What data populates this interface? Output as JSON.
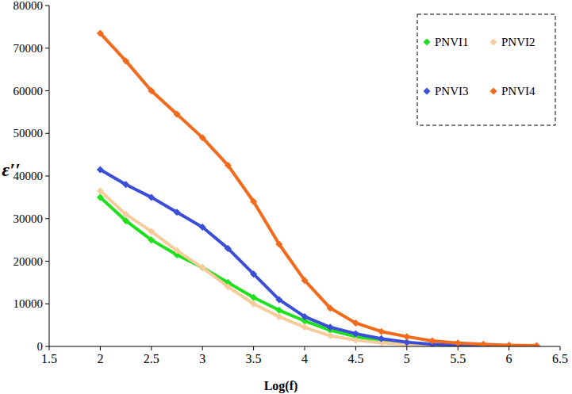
{
  "chart_data": {
    "type": "line",
    "x_label": "Log(f)",
    "y_label": "ε′′",
    "x": [
      2,
      2.25,
      2.5,
      2.75,
      3,
      3.25,
      3.5,
      3.75,
      4,
      4.25,
      4.5,
      4.75,
      5,
      5.25,
      5.5,
      5.75,
      6,
      6.27
    ],
    "series": [
      {
        "name": "PNVI1",
        "color": "#1ee01e",
        "marker": "diamond",
        "values": [
          35000,
          29500,
          25000,
          21500,
          18500,
          15000,
          11500,
          8500,
          6000,
          3800,
          2300,
          1300,
          700,
          400,
          250,
          150,
          100,
          80
        ]
      },
      {
        "name": "PNVI2",
        "color": "#f7cc9c",
        "marker": "diamond",
        "values": [
          36500,
          31000,
          27000,
          22500,
          18500,
          14000,
          10000,
          7000,
          4500,
          2500,
          1500,
          900,
          500,
          300,
          200,
          150,
          100,
          80
        ]
      },
      {
        "name": "PNVI3",
        "color": "#3a4fd8",
        "marker": "diamond",
        "values": [
          41500,
          38000,
          35000,
          31500,
          28000,
          23000,
          17000,
          11000,
          7000,
          4500,
          3000,
          1800,
          1000,
          500,
          300,
          200,
          150,
          100
        ]
      },
      {
        "name": "PNVI4",
        "color": "#f26a1b",
        "marker": "diamond",
        "values": [
          73500,
          67000,
          60000,
          54500,
          49000,
          42500,
          34000,
          24000,
          15500,
          9000,
          5500,
          3500,
          2300,
          1300,
          800,
          500,
          300,
          200
        ]
      }
    ],
    "xlim": [
      1.5,
      6.5
    ],
    "ylim": [
      0,
      80000
    ],
    "xticks": [
      1.5,
      2,
      2.5,
      3,
      3.5,
      4,
      4.5,
      5,
      5.5,
      6,
      6.5
    ],
    "yticks": [
      0,
      10000,
      20000,
      30000,
      40000,
      50000,
      60000,
      70000,
      80000
    ],
    "grid": false,
    "legend": "top-right",
    "line_style": "solid"
  }
}
